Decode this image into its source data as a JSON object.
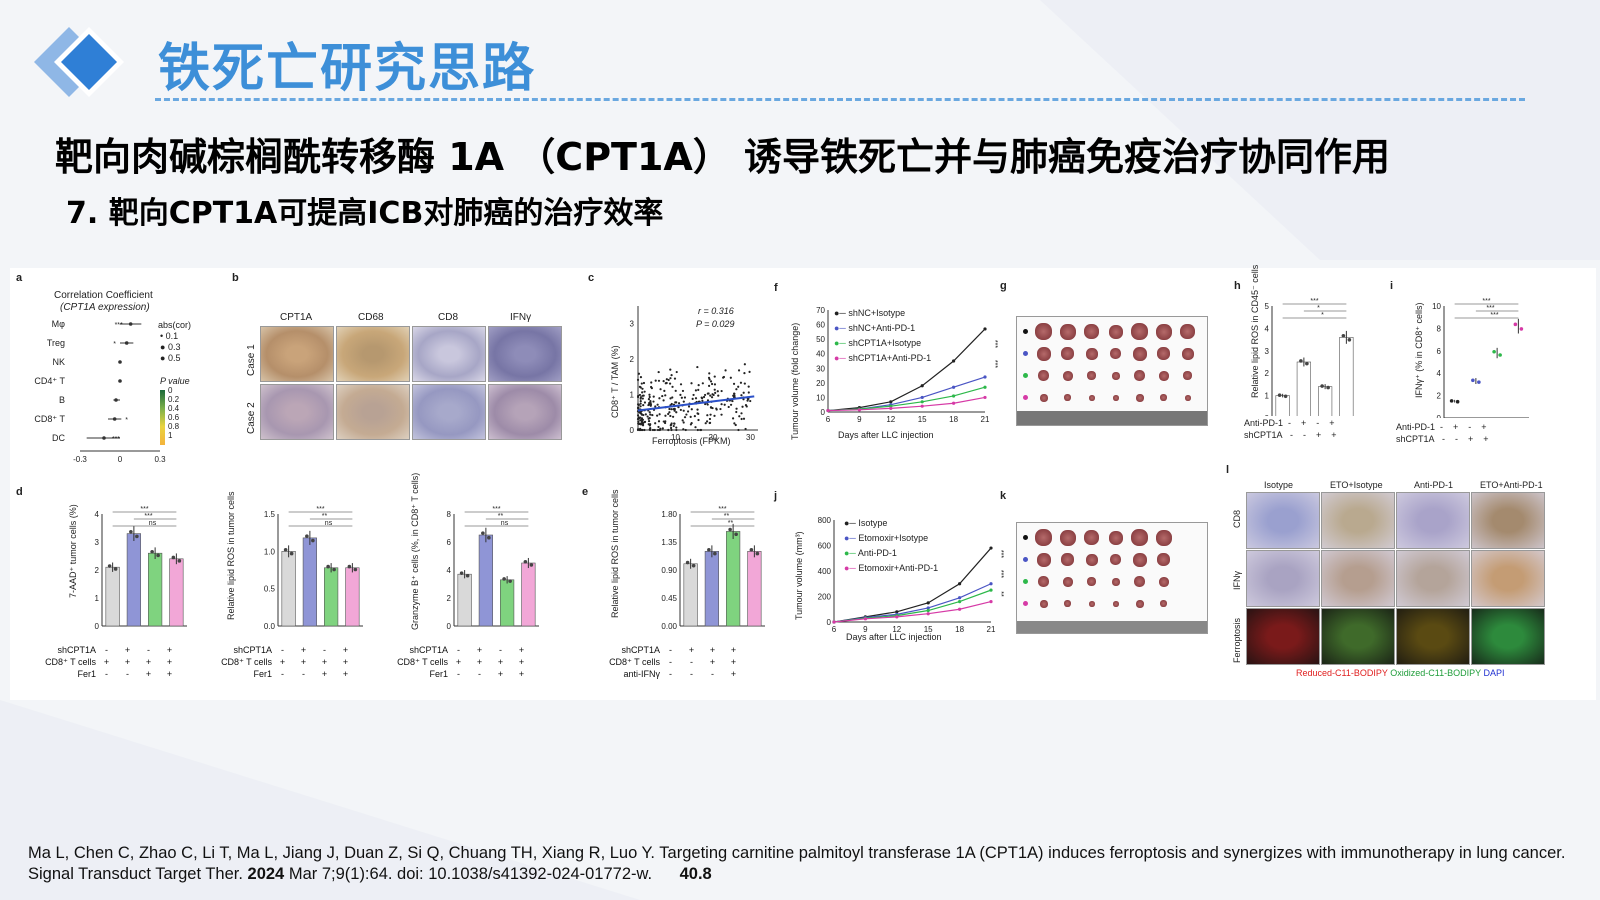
{
  "slide": {
    "title": "铁死亡研究思路",
    "headline": "靶向肉碱棕榈酰转移酶 1A （CPT1A） 诱导铁死亡并与肺癌免疫治疗协同作用",
    "subhead": "7. 靶向CPT1A可提高ICB对肺癌的治疗效率"
  },
  "colors": {
    "accent": "#3d8fd8",
    "grey_bar": "#d9d9d9",
    "blue_bar": "#8f95d6",
    "green_bar": "#7fd37f",
    "pink_bar": "#f2a7d7"
  },
  "figure": {
    "panel_a": {
      "label": "a",
      "title": "Correlation Coefficient",
      "subtitle": "(CPT1A expression)",
      "rows": [
        "Mφ",
        "Treg",
        "NK",
        "CD4⁺ T",
        "B",
        "CD8⁺ T",
        "DC"
      ],
      "xticks": [
        "-0.3",
        "0",
        "0.3"
      ],
      "legend_size_title": "abs(cor)",
      "sizes": [
        "0.1",
        "0.3",
        "0.5"
      ],
      "legend_p_title": "P value",
      "pvals": [
        "0",
        "0.2",
        "0.4",
        "0.6",
        "0.8",
        "1"
      ],
      "chart_data": {
        "type": "scatter",
        "title": "Correlation Coefficient",
        "xlim": [
          -0.3,
          0.3
        ],
        "categories": [
          "Mφ",
          "Treg",
          "NK",
          "CD4⁺ T",
          "B",
          "CD8⁺ T",
          "DC"
        ],
        "values": [
          0.08,
          0.05,
          0.0,
          0.0,
          -0.03,
          -0.04,
          -0.12
        ],
        "ci": [
          [
            0.0,
            0.16
          ],
          [
            0.0,
            0.1
          ],
          [
            -0.01,
            0.01
          ],
          [
            -0.01,
            0.01
          ],
          [
            -0.05,
            0.0
          ],
          [
            -0.09,
            0.01
          ],
          [
            -0.25,
            0.0
          ]
        ],
        "annotations": [
          "***",
          "*",
          "",
          "",
          "",
          "*",
          "***"
        ]
      }
    },
    "panel_b": {
      "label": "b",
      "columns": [
        "CPT1A",
        "CD68",
        "CD8",
        "IFNγ"
      ],
      "rows": [
        "Case 1",
        "Case 2"
      ]
    },
    "panel_c": {
      "label": "c",
      "annotation_r": "r = 0.316",
      "annotation_p": "P = 0.029",
      "xlabel": "Ferroptosis (FPKM)",
      "ylabel": "CD8⁺ T / TAM (%)",
      "chart_data": {
        "type": "scatter",
        "xlabel": "Ferroptosis (FPKM)",
        "ylabel": "CD8⁺ T / TAM (%)",
        "xlim": [
          0,
          32
        ],
        "ylim": [
          0,
          3.5
        ],
        "xticks": [
          "10",
          "20",
          "30"
        ],
        "yticks": [
          "0",
          "1",
          "2",
          "3"
        ],
        "fit": {
          "x": [
            0,
            31
          ],
          "y": [
            0.55,
            0.95
          ]
        },
        "r": 0.316,
        "p": 0.029
      }
    },
    "panel_f": {
      "label": "f",
      "legend": [
        "shNC+Isotype",
        "shNC+Anti-PD-1",
        "shCPT1A+Isotype",
        "shCPT1A+Anti-PD-1"
      ],
      "xlabel": "Days after LLC injection",
      "ylabel": "Tumour volume (fold change)",
      "sig": "***",
      "chart_data": {
        "type": "line",
        "x": [
          6,
          9,
          12,
          15,
          18,
          21
        ],
        "xlim": [
          6,
          21
        ],
        "ylim": [
          0,
          70
        ],
        "yticks": [
          "0",
          "10",
          "20",
          "30",
          "40",
          "50",
          "60",
          "70"
        ],
        "series": [
          {
            "name": "shNC+Isotype",
            "values": [
              1,
              3,
              7,
              18,
              35,
              57
            ]
          },
          {
            "name": "shNC+Anti-PD-1",
            "values": [
              1,
              2,
              5,
              10,
              17,
              24
            ]
          },
          {
            "name": "shCPT1A+Isotype",
            "values": [
              1,
              2,
              4,
              7,
              11,
              17
            ]
          },
          {
            "name": "shCPT1A+Anti-PD-1",
            "values": [
              1,
              1.5,
              2.5,
              4,
              6,
              10
            ]
          }
        ]
      }
    },
    "panel_g": {
      "label": "g"
    },
    "panel_h": {
      "label": "h",
      "ylabel": "Relative lipid ROS in CD45⁻ cells",
      "rows": [
        "Anti-PD-1",
        "shCPT1A"
      ],
      "row_signs": [
        [
          "-",
          "+",
          "-",
          "+"
        ],
        [
          "-",
          "-",
          "+",
          "+"
        ]
      ],
      "chart_data": {
        "type": "bar",
        "ylim": [
          0,
          5
        ],
        "yticks": [
          "0",
          "1",
          "2",
          "3",
          "4",
          "5"
        ],
        "values": [
          1.0,
          2.5,
          1.4,
          3.6
        ],
        "annotations": [
          "***",
          "*",
          "*",
          "***",
          "***"
        ]
      }
    },
    "panel_i": {
      "label": "i",
      "ylabel": "IFNγ⁺ (% in CD8⁺ cells)",
      "rows": [
        "Anti-PD-1",
        "shCPT1A"
      ],
      "row_signs": [
        [
          "-",
          "+",
          "-",
          "+"
        ],
        [
          "-",
          "-",
          "+",
          "+"
        ]
      ],
      "chart_data": {
        "type": "scatter",
        "ylim": [
          0,
          10
        ],
        "yticks": [
          "0",
          "2",
          "4",
          "6",
          "8",
          "10"
        ],
        "values": [
          1.5,
          3.3,
          5.8,
          8.2
        ],
        "annotations": [
          "***",
          "***",
          "***",
          "***",
          "**"
        ]
      }
    },
    "panel_d": {
      "label": "d",
      "row_names": [
        "shCPT1A",
        "CD8⁺ T cells",
        "Fer1"
      ],
      "row_signs": [
        [
          "-",
          "+",
          "-",
          "+"
        ],
        [
          "+",
          "+",
          "+",
          "+"
        ],
        [
          "-",
          "-",
          "+",
          "+"
        ]
      ],
      "charts": [
        {
          "ylabel": "7-AAD⁺ tumor cells (%)",
          "yticks": [
            "0",
            "1",
            "2",
            "3",
            "4"
          ],
          "ylim": [
            0,
            4
          ],
          "values": [
            2.1,
            3.3,
            2.6,
            2.4
          ],
          "sig": [
            "***",
            "***",
            "ns"
          ]
        },
        {
          "ylabel": "Relative lipid ROS in tumor cells",
          "yticks": [
            "0.0",
            "0.5",
            "1.0",
            "1.5"
          ],
          "ylim": [
            0,
            1.5
          ],
          "values": [
            1.0,
            1.18,
            0.78,
            0.78
          ],
          "sig": [
            "***",
            "**",
            "ns"
          ]
        },
        {
          "ylabel": "Granzyme B⁺ cells (%, in CD8⁺ T cells)",
          "yticks": [
            "0",
            "2",
            "4",
            "6",
            "8"
          ],
          "ylim": [
            0,
            8
          ],
          "values": [
            3.7,
            6.5,
            3.3,
            4.5
          ],
          "sig": [
            "***",
            "**",
            "ns"
          ]
        }
      ]
    },
    "panel_e": {
      "label": "e",
      "ylabel": "Relative lipid ROS in tumor cells",
      "row_names": [
        "shCPT1A",
        "CD8⁺ T cells",
        "anti-IFNγ"
      ],
      "row_signs": [
        [
          "-",
          "+",
          "+",
          "+"
        ],
        [
          "-",
          "-",
          "+",
          "+"
        ],
        [
          "-",
          "-",
          "-",
          "+"
        ]
      ],
      "chart_data": {
        "type": "bar",
        "ylim": [
          0,
          1.8
        ],
        "yticks": [
          "0.00",
          "0.45",
          "0.90",
          "1.35",
          "1.80"
        ],
        "values": [
          1.0,
          1.2,
          1.52,
          1.2
        ],
        "sig": [
          "***",
          "**",
          "**"
        ]
      }
    },
    "panel_j": {
      "label": "j",
      "legend": [
        "Isotype",
        "Etomoxir+Isotype",
        "Anti-PD-1",
        "Etomoxir+Anti-PD-1"
      ],
      "xlabel": "Days after LLC injection",
      "ylabel": "Tumour volume (mm³)",
      "chart_data": {
        "type": "line",
        "x": [
          6,
          9,
          12,
          15,
          18,
          21
        ],
        "xlim": [
          6,
          21
        ],
        "ylim": [
          0,
          800
        ],
        "yticks": [
          "0",
          "200",
          "400",
          "600",
          "800"
        ],
        "series": [
          {
            "name": "Isotype",
            "values": [
              0,
              40,
              80,
              150,
              300,
              580
            ]
          },
          {
            "name": "Etomoxir+Isotype",
            "values": [
              0,
              35,
              60,
              110,
              190,
              300
            ]
          },
          {
            "name": "Anti-PD-1",
            "values": [
              0,
              30,
              50,
              90,
              160,
              250
            ]
          },
          {
            "name": "Etomoxir+Anti-PD-1",
            "values": [
              0,
              25,
              40,
              65,
              100,
              160
            ]
          }
        ],
        "sig": [
          "***",
          "***",
          "**"
        ]
      }
    },
    "panel_k": {
      "label": "k"
    },
    "panel_l": {
      "label": "l",
      "columns": [
        "Isotype",
        "ETO+Isotype",
        "Anti-PD-1",
        "ETO+Anti-PD-1"
      ],
      "rows": [
        "CD8",
        "IFNγ",
        "Ferroptosis"
      ],
      "legend_red": "Reduced-C11-BODIPY",
      "legend_green": "Oxidized-C11-BODIPY",
      "legend_blue": "DAPI"
    }
  },
  "citation": {
    "text": "Ma L, Chen C, Zhao C, Li T, Ma L, Jiang J, Duan Z, Si Q, Chuang TH, Xiang R, Luo Y. Targeting carnitine palmitoyl transferase 1A (CPT1A) induces ferroptosis and synergizes with immunotherapy in lung cancer. Signal Transduct Target Ther. ",
    "year": "2024",
    "rest": " Mar 7;9(1):64. doi: 10.1038/s41392-024-01772-w.",
    "impact": "40.8"
  }
}
